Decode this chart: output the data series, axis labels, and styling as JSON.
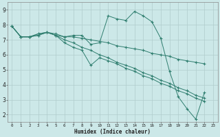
{
  "xlabel": "Humidex (Indice chaleur)",
  "bg_color": "#cce8e8",
  "grid_color": "#b0cccc",
  "line_color": "#2e7d6e",
  "xlim": [
    -0.5,
    23.5
  ],
  "ylim": [
    1.5,
    9.5
  ],
  "xticks": [
    0,
    1,
    2,
    3,
    4,
    5,
    6,
    7,
    8,
    9,
    10,
    11,
    12,
    13,
    14,
    15,
    16,
    17,
    18,
    19,
    20,
    21,
    22,
    23
  ],
  "yticks": [
    2,
    3,
    4,
    5,
    6,
    7,
    8,
    9
  ],
  "line1_x": [
    0,
    1,
    2,
    3,
    4,
    5,
    6,
    7,
    8,
    9,
    10,
    11,
    12,
    13,
    14,
    15,
    16,
    17,
    18,
    19,
    20,
    21,
    22
  ],
  "line1_y": [
    7.9,
    7.2,
    7.2,
    7.3,
    7.5,
    7.4,
    7.2,
    7.3,
    7.3,
    6.7,
    6.8,
    8.6,
    8.4,
    8.3,
    8.9,
    8.6,
    8.2,
    7.1,
    4.9,
    3.2,
    2.4,
    1.7,
    3.5
  ],
  "line2_x": [
    0,
    1,
    2,
    3,
    4,
    5,
    6,
    7,
    8,
    9,
    10,
    11,
    12,
    13,
    14,
    15,
    16,
    17,
    18,
    19,
    20,
    21,
    22
  ],
  "line2_y": [
    7.9,
    7.2,
    7.2,
    7.4,
    7.5,
    7.3,
    7.2,
    7.2,
    7.1,
    7.0,
    6.9,
    6.8,
    6.6,
    6.5,
    6.4,
    6.3,
    6.1,
    6.0,
    5.9,
    5.7,
    5.6,
    5.5,
    5.4
  ],
  "line3_x": [
    0,
    1,
    2,
    3,
    4,
    5,
    6,
    7,
    8,
    9,
    10,
    11,
    12,
    13,
    14,
    15,
    16,
    17,
    18,
    19,
    20,
    21,
    22
  ],
  "line3_y": [
    7.9,
    7.2,
    7.2,
    7.4,
    7.5,
    7.3,
    7.0,
    6.8,
    6.5,
    6.3,
    6.0,
    5.8,
    5.5,
    5.3,
    5.1,
    4.8,
    4.6,
    4.3,
    4.1,
    3.8,
    3.6,
    3.3,
    3.1
  ],
  "line4_x": [
    0,
    1,
    2,
    3,
    4,
    5,
    6,
    7,
    8,
    9,
    10,
    11,
    12,
    13,
    14,
    15,
    16,
    17,
    18,
    19,
    20,
    21,
    22
  ],
  "line4_y": [
    7.9,
    7.2,
    7.2,
    7.3,
    7.5,
    7.3,
    6.8,
    6.5,
    6.3,
    5.3,
    5.8,
    5.6,
    5.4,
    5.1,
    4.9,
    4.6,
    4.4,
    4.1,
    3.9,
    3.6,
    3.4,
    3.1,
    2.9
  ]
}
